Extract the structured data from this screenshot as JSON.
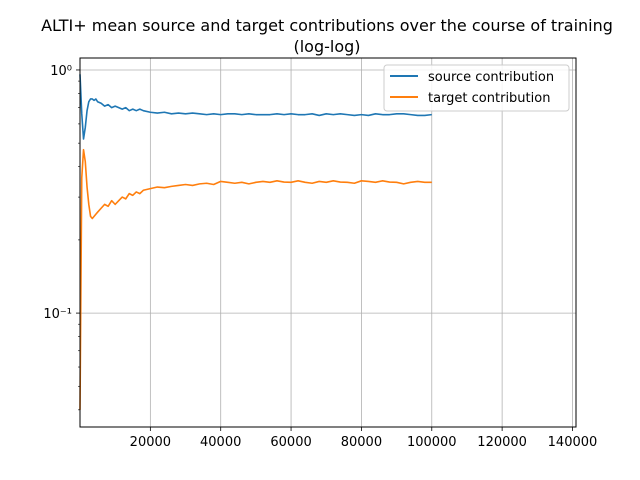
{
  "chart_data": {
    "type": "line",
    "title_line1": "ALTI+ mean source and target contributions over the course of training",
    "title_line2": "(log-log)",
    "xlabel": "",
    "ylabel": "",
    "x_scale": "linear",
    "y_scale": "log",
    "xlim": [
      0,
      141000
    ],
    "ylim": [
      0.034,
      1.12
    ],
    "x_ticks": [
      20000,
      40000,
      60000,
      80000,
      100000,
      120000,
      140000
    ],
    "x_tick_labels": [
      "20000",
      "40000",
      "60000",
      "80000",
      "100000",
      "120000",
      "140000"
    ],
    "y_major_ticks": [
      0.1,
      1.0
    ],
    "y_tick_labels": [
      "10⁻¹",
      "10⁰"
    ],
    "grid": true,
    "legend_position": "upper right",
    "series": [
      {
        "name": "source contribution",
        "color": "#1f77b4",
        "x": [
          0,
          500,
          1000,
          1500,
          2000,
          2500,
          3000,
          3500,
          4000,
          4500,
          5000,
          6000,
          7000,
          8000,
          9000,
          10000,
          11000,
          12000,
          13000,
          14000,
          15000,
          16000,
          17000,
          18000,
          20000,
          22000,
          24000,
          26000,
          28000,
          30000,
          32000,
          34000,
          36000,
          38000,
          40000,
          42000,
          44000,
          46000,
          48000,
          50000,
          52000,
          54000,
          56000,
          58000,
          60000,
          62000,
          64000,
          66000,
          68000,
          70000,
          72000,
          74000,
          76000,
          78000,
          80000,
          82000,
          84000,
          86000,
          88000,
          90000,
          92000,
          94000,
          96000,
          98000,
          100000
        ],
        "values": [
          0.96,
          0.66,
          0.52,
          0.58,
          0.68,
          0.74,
          0.76,
          0.76,
          0.75,
          0.76,
          0.74,
          0.73,
          0.71,
          0.72,
          0.7,
          0.71,
          0.7,
          0.69,
          0.7,
          0.68,
          0.69,
          0.68,
          0.69,
          0.68,
          0.67,
          0.665,
          0.67,
          0.66,
          0.665,
          0.66,
          0.665,
          0.66,
          0.655,
          0.66,
          0.655,
          0.66,
          0.66,
          0.655,
          0.66,
          0.655,
          0.655,
          0.655,
          0.66,
          0.655,
          0.66,
          0.655,
          0.655,
          0.66,
          0.65,
          0.66,
          0.655,
          0.66,
          0.655,
          0.65,
          0.655,
          0.65,
          0.66,
          0.655,
          0.655,
          0.66,
          0.66,
          0.655,
          0.65,
          0.65,
          0.655
        ]
      },
      {
        "name": "target contribution",
        "color": "#ff7f0e",
        "x": [
          0,
          500,
          1000,
          1500,
          2000,
          2500,
          3000,
          3500,
          4000,
          4500,
          5000,
          6000,
          7000,
          8000,
          9000,
          10000,
          11000,
          12000,
          13000,
          14000,
          15000,
          16000,
          17000,
          18000,
          20000,
          22000,
          24000,
          26000,
          28000,
          30000,
          32000,
          34000,
          36000,
          38000,
          40000,
          42000,
          44000,
          46000,
          48000,
          50000,
          52000,
          54000,
          56000,
          58000,
          60000,
          62000,
          64000,
          66000,
          68000,
          70000,
          72000,
          74000,
          76000,
          78000,
          80000,
          82000,
          84000,
          86000,
          88000,
          90000,
          92000,
          94000,
          96000,
          98000,
          100000
        ],
        "values": [
          0.04,
          0.36,
          0.47,
          0.42,
          0.33,
          0.28,
          0.25,
          0.245,
          0.25,
          0.255,
          0.26,
          0.27,
          0.28,
          0.275,
          0.29,
          0.28,
          0.29,
          0.3,
          0.295,
          0.31,
          0.305,
          0.315,
          0.31,
          0.32,
          0.325,
          0.33,
          0.328,
          0.332,
          0.335,
          0.338,
          0.335,
          0.34,
          0.342,
          0.338,
          0.348,
          0.345,
          0.342,
          0.345,
          0.34,
          0.345,
          0.348,
          0.345,
          0.35,
          0.346,
          0.345,
          0.35,
          0.345,
          0.342,
          0.348,
          0.345,
          0.35,
          0.346,
          0.345,
          0.342,
          0.35,
          0.348,
          0.345,
          0.35,
          0.346,
          0.345,
          0.34,
          0.345,
          0.348,
          0.345,
          0.345
        ]
      }
    ]
  }
}
